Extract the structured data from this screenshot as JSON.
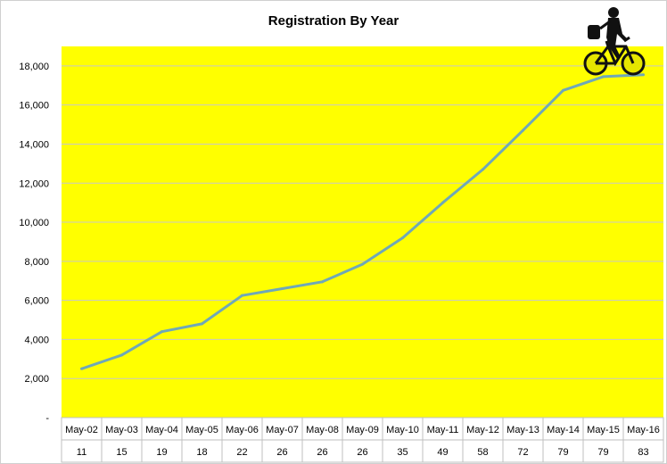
{
  "chart_data": {
    "type": "line",
    "title": "Registration By Year",
    "xlabel": "",
    "ylabel": "",
    "ylim": [
      0,
      19000
    ],
    "yticks": [
      "-",
      "2,000",
      "4,000",
      "6,000",
      "8,000",
      "10,000",
      "12,000",
      "14,000",
      "16,000",
      "18,000"
    ],
    "ytick_values": [
      0,
      2000,
      4000,
      6000,
      8000,
      10000,
      12000,
      14000,
      16000,
      18000
    ],
    "categories": [
      "May-02",
      "May-03",
      "May-04",
      "May-05",
      "May-06",
      "May-07",
      "May-08",
      "May-09",
      "May-10",
      "May-11",
      "May-12",
      "May-13",
      "May-14",
      "May-15",
      "May-16"
    ],
    "table_row": [
      "11",
      "15",
      "19",
      "18",
      "22",
      "26",
      "26",
      "26",
      "35",
      "49",
      "58",
      "72",
      "79",
      "79",
      "83"
    ],
    "series": [
      {
        "values": [
          2500,
          3200,
          4400,
          4800,
          6250,
          6600,
          6950,
          7850,
          9200,
          11000,
          12700,
          14700,
          16750,
          17450,
          17550
        ]
      }
    ],
    "grid": true,
    "legend": "none",
    "colors": {
      "plot_background": "#ffff00",
      "line": "#6fa8b8",
      "gridline": "#c8c8c8",
      "border": "#bfbfbf"
    },
    "decoration": "bicycle-rider-icon"
  }
}
